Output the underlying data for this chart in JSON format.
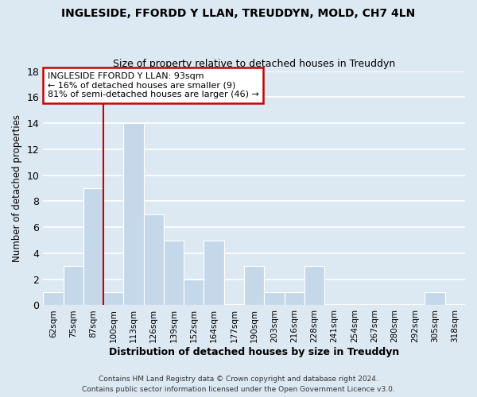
{
  "title": "INGLESIDE, FFORDD Y LLAN, TREUDDYN, MOLD, CH7 4LN",
  "subtitle": "Size of property relative to detached houses in Treuddyn",
  "xlabel": "Distribution of detached houses by size in Treuddyn",
  "ylabel": "Number of detached properties",
  "footer_line1": "Contains HM Land Registry data © Crown copyright and database right 2024.",
  "footer_line2": "Contains public sector information licensed under the Open Government Licence v3.0.",
  "bin_labels": [
    "62sqm",
    "75sqm",
    "87sqm",
    "100sqm",
    "113sqm",
    "126sqm",
    "139sqm",
    "152sqm",
    "164sqm",
    "177sqm",
    "190sqm",
    "203sqm",
    "216sqm",
    "228sqm",
    "241sqm",
    "254sqm",
    "267sqm",
    "280sqm",
    "292sqm",
    "305sqm",
    "318sqm"
  ],
  "bar_values": [
    1,
    3,
    9,
    1,
    14,
    7,
    5,
    2,
    5,
    0,
    3,
    1,
    1,
    3,
    0,
    0,
    0,
    0,
    0,
    1,
    0
  ],
  "bar_color": "#c5d8ea",
  "bar_edge_color": "#ffffff",
  "grid_color": "#ffffff",
  "bg_color": "#dce8f2",
  "annotation_text_line1": "INGLESIDE FFORDD Y LLAN: 93sqm",
  "annotation_text_line2": "← 16% of detached houses are smaller (9)",
  "annotation_text_line3": "81% of semi-detached houses are larger (46) →",
  "vline_x_index": 2.5,
  "vline_color": "#cc0000",
  "ylim": [
    0,
    18
  ],
  "yticks": [
    0,
    2,
    4,
    6,
    8,
    10,
    12,
    14,
    16,
    18
  ]
}
